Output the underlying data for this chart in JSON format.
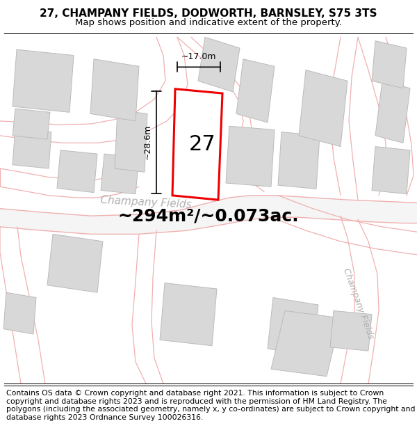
{
  "title_line1": "27, CHAMPANY FIELDS, DODWORTH, BARNSLEY, S75 3TS",
  "title_line2": "Map shows position and indicative extent of the property.",
  "footer_text": "Contains OS data © Crown copyright and database right 2021. This information is subject to Crown copyright and database rights 2023 and is reproduced with the permission of HM Land Registry. The polygons (including the associated geometry, namely x, y co-ordinates) are subject to Crown copyright and database rights 2023 Ordnance Survey 100026316.",
  "area_label": "~294m²/~0.073ac.",
  "property_number": "27",
  "dim_width": "~17.0m",
  "dim_height": "~28.6m",
  "road_label1": "Champany Fields",
  "road_label2": "Champany Fields",
  "map_bg": "#f9f9f9",
  "road_color": "#f0b0b0",
  "road_fill": "#f0f0f0",
  "building_fill": "#d8d8d8",
  "building_edge": "#bbbbbb",
  "red_color": "#ee0000",
  "dim_color": "#111111",
  "road_label_color": "#b0b0b0",
  "title_fontsize": 11,
  "subtitle_fontsize": 9.5,
  "footer_fontsize": 7.8,
  "area_fontsize": 18,
  "number_fontsize": 22
}
